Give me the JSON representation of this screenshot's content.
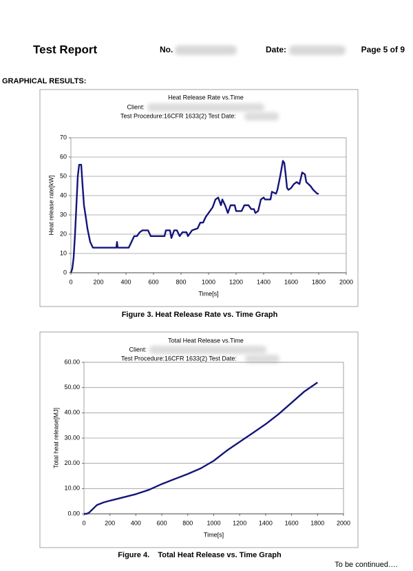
{
  "header": {
    "title": "Test Report",
    "no_label": "No.",
    "date_label": "Date:",
    "page": "Page 5 of 9"
  },
  "section_title": "GRAPHICAL RESULTS:",
  "chart_data": [
    {
      "type": "line",
      "title": "Heat Release Rate vs.Time",
      "client_label": "Client:",
      "procedure_label": "Test Procedure:16CFR 1633(2) Test Date:",
      "x_label": "Time[s]",
      "y_label": "Heat release rate[kW]",
      "caption": "Figure 3. Heat Release Rate vs. Time Graph",
      "xlim": [
        0,
        2000
      ],
      "xticks": [
        0,
        200,
        400,
        600,
        800,
        1000,
        1200,
        1400,
        1600,
        1800,
        2000
      ],
      "ylim": [
        0,
        70
      ],
      "yticks": [
        0,
        10,
        20,
        30,
        40,
        50,
        60,
        70
      ],
      "grid": true,
      "color": "#14147a",
      "x": [
        0,
        10,
        20,
        30,
        40,
        50,
        60,
        75,
        85,
        95,
        110,
        120,
        140,
        160,
        330,
        335,
        340,
        420,
        440,
        460,
        480,
        500,
        520,
        560,
        580,
        680,
        690,
        720,
        730,
        750,
        770,
        790,
        810,
        840,
        850,
        880,
        920,
        940,
        960,
        980,
        1010,
        1030,
        1050,
        1070,
        1090,
        1100,
        1120,
        1140,
        1160,
        1190,
        1200,
        1240,
        1260,
        1290,
        1310,
        1330,
        1340,
        1360,
        1380,
        1400,
        1410,
        1450,
        1460,
        1490,
        1500,
        1520,
        1540,
        1550,
        1560,
        1570,
        1580,
        1600,
        1620,
        1640,
        1660,
        1680,
        1700,
        1710,
        1740,
        1760,
        1790,
        1800
      ],
      "values": [
        0,
        2,
        8,
        20,
        35,
        50,
        56,
        56,
        45,
        35,
        28,
        23,
        16,
        13,
        13,
        16,
        13,
        13,
        16,
        19,
        19,
        21,
        22,
        22,
        19,
        19,
        22,
        22,
        18,
        22,
        22,
        19,
        21,
        21,
        19,
        22,
        23,
        26,
        26,
        29,
        32,
        34,
        38,
        39,
        35,
        38,
        35,
        31,
        35,
        35,
        32,
        32,
        35,
        35,
        33,
        33,
        31,
        32,
        38,
        39,
        38,
        38,
        42,
        41,
        43,
        50,
        58,
        57,
        51,
        44,
        43,
        44,
        46,
        47,
        46,
        52,
        51,
        47,
        45,
        43,
        41,
        41
      ]
    },
    {
      "type": "line",
      "title": "Total Heat Release vs.Time",
      "client_label": "Client:",
      "procedure_label": "Test Procedure:16CFR 1633(2) Test Date:",
      "x_label": "Time[s]",
      "y_label": "Total heat release[MJ]",
      "caption": "Figure 4.    Total Heat Release vs. Time Graph",
      "xlim": [
        0,
        2000
      ],
      "xticks": [
        0,
        200,
        400,
        600,
        800,
        1000,
        1200,
        1400,
        1600,
        1800,
        2000
      ],
      "ylim": [
        0,
        60
      ],
      "yticks": [
        {
          "value": 0,
          "label": "0.00"
        },
        {
          "value": 10,
          "label": "10.00"
        },
        {
          "value": 20,
          "label": "20.00"
        },
        {
          "value": 30,
          "label": "30.00"
        },
        {
          "value": 40,
          "label": "40.00"
        },
        {
          "value": 50,
          "label": "50.00"
        },
        {
          "value": 60,
          "label": "60.00"
        }
      ],
      "grid": true,
      "color": "#14147a",
      "x": [
        0,
        20,
        40,
        60,
        80,
        100,
        150,
        200,
        300,
        400,
        500,
        600,
        700,
        800,
        900,
        1000,
        1100,
        1200,
        1300,
        1400,
        1500,
        1600,
        1700,
        1800
      ],
      "values": [
        0,
        0,
        0.5,
        1.5,
        2.5,
        3.5,
        4.5,
        5.2,
        6.5,
        7.8,
        9.5,
        11.8,
        13.8,
        15.8,
        18,
        21,
        25,
        28.5,
        32,
        35.5,
        39.5,
        44,
        48.5,
        52
      ]
    }
  ],
  "footer": "To be continued…."
}
